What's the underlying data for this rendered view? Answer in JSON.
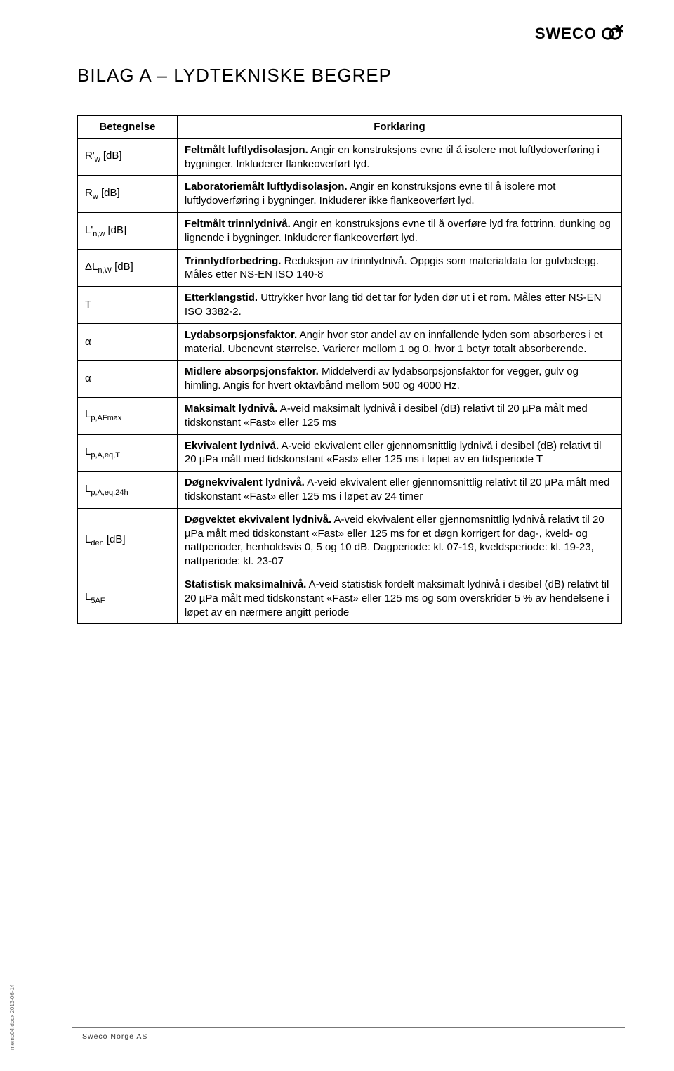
{
  "logo": {
    "text": "SWECO"
  },
  "title": "BILAG A – LYDTEKNISKE BEGREP",
  "table": {
    "header": {
      "label": "Betegnelse",
      "explain": "Forklaring"
    },
    "rows": [
      {
        "label_html": "R'<span class='sub'>w</span> [dB]",
        "explain_html": "<b>Feltmålt luftlydisolasjon.</b> Angir en konstruksjons evne til å isolere mot luftlydoverføring i bygninger. Inkluderer flankeoverført lyd."
      },
      {
        "label_html": "R<span class='sub'>w</span> [dB]",
        "explain_html": "<b>Laboratoriemålt luftlydisolasjon.</b> Angir en konstruksjons evne til å isolere mot luftlydoverføring i bygninger. Inkluderer ikke flankeoverført lyd."
      },
      {
        "label_html": "L'<span class='sub'>n,w</span> [dB]",
        "explain_html": "<b>Feltmålt trinnlydnivå.</b> Angir en konstruksjons evne til å overføre lyd fra fottrinn, dunking og lignende i bygninger. Inkluderer flankeoverført lyd."
      },
      {
        "label_html": "ΔL<span class='sub'>n,W</span> [dB]",
        "explain_html": "<b>Trinnlydforbedring.</b> Reduksjon av trinnlydnivå. Oppgis som materialdata for gulvbelegg. Måles etter NS-EN ISO 140-8"
      },
      {
        "label_html": "T",
        "explain_html": "<b>Etterklangstid.</b> Uttrykker hvor lang tid det tar for lyden dør ut i et rom. Måles etter NS-EN ISO 3382-2."
      },
      {
        "label_html": "α",
        "explain_html": "<b>Lydabsorpsjonsfaktor.</b> Angir hvor stor andel av en innfallende lyden som absorberes i et material. Ubenevnt størrelse. Varierer mellom 1 og 0, hvor 1 betyr totalt absorberende."
      },
      {
        "label_html": "ᾱ",
        "explain_html": "<b>Midlere absorpsjonsfaktor.</b> Middelverdi av lydabsorpsjonsfaktor for vegger, gulv og himling. Angis for hvert oktavbånd mellom 500 og 4000 Hz."
      },
      {
        "label_html": "L<span class='sub'>p,AFmax</span>",
        "explain_html": "<b>Maksimalt lydnivå.</b> A-veid maksimalt lydnivå i desibel (dB) relativt til 20 µPa målt med tidskonstant «Fast» eller 125 ms"
      },
      {
        "label_html": "L<span class='sub'>p,A,eq,T</span>",
        "explain_html": "<b>Ekvivalent lydnivå.</b> A-veid ekvivalent eller gjennomsnittlig lydnivå i desibel (dB) relativt til 20 µPa målt med tidskonstant «Fast» eller 125 ms i løpet av en tidsperiode T"
      },
      {
        "label_html": "L<span class='sub'>p,A,eq,24h</span>",
        "explain_html": "<b>Døgnekvivalent lydnivå.</b> A-veid ekvivalent eller gjennomsnittlig relativt til 20 µPa målt med tidskonstant «Fast» eller 125 ms i løpet av 24 timer"
      },
      {
        "label_html": "L<span class='sub'>den</span> [dB]",
        "explain_html": "<b>Døgvektet ekvivalent lydnivå.</b> A-veid ekvivalent eller gjennomsnittlig lydnivå relativt til 20 µPa målt med tidskonstant «Fast» eller 125 ms for et døgn korrigert for dag-, kveld- og nattperioder, henholdsvis 0, 5 og 10 dB. Dagperiode: kl. 07-19, kveldsperiode: kl. 19-23, nattperiode: kl. 23-07"
      },
      {
        "label_html": "L<span class='sub'>5AF</span>",
        "explain_html": "<b>Statistisk maksimalnivå.</b> A-veid statistisk fordelt maksimalt lydnivå i desibel (dB) relativt til 20 µPa målt med tidskonstant «Fast» eller 125 ms og som overskrider 5 % av hendelsene i løpet av en nærmere angitt periode"
      }
    ]
  },
  "footer": "Sweco Norge AS",
  "side": "memo04.docx 2013-06-14",
  "colors": {
    "text": "#000000",
    "border": "#000000",
    "footer_border": "#777777",
    "side_text": "#666666",
    "background": "#ffffff"
  },
  "typography": {
    "title_fontsize": 26,
    "body_fontsize": 15,
    "sub_fontsize": 11,
    "footer_fontsize": 10.5,
    "side_fontsize": 8
  }
}
